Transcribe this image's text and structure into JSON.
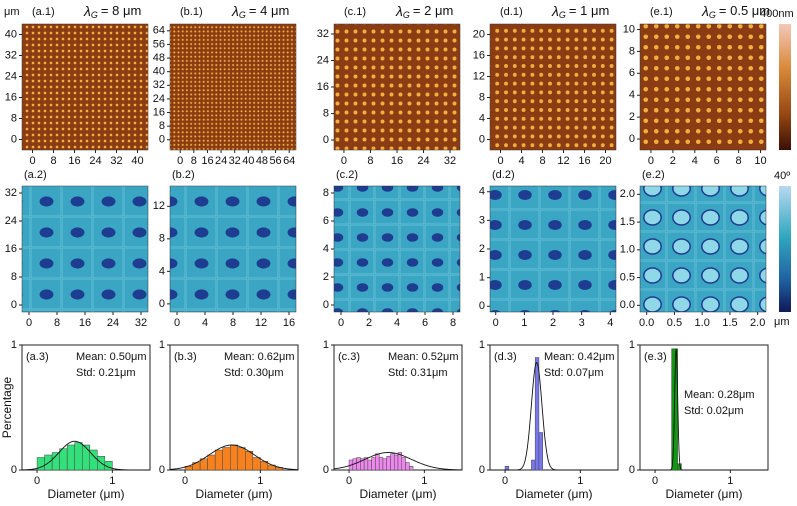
{
  "labels": {
    "unit_top": "μm",
    "bar1_top": "400nm",
    "bar2_top": "40º",
    "bar2_bottom": "μm"
  },
  "chart_data": [
    {
      "type": "image",
      "label": "(a.1)",
      "title": {
        "symbol": "λ",
        "subscript": "G",
        "text": "= 8  μm"
      },
      "xlim": [
        -4,
        44
      ],
      "ylim": [
        -4,
        44
      ],
      "xticks": [
        0,
        8,
        16,
        24,
        32,
        40
      ],
      "yticks": [
        0,
        8,
        16,
        24,
        32,
        40
      ]
    },
    {
      "type": "image",
      "label": "(b.1)",
      "title": {
        "symbol": "λ",
        "subscript": "G",
        "text": "= 4  μm"
      },
      "xlim": [
        -6,
        68
      ],
      "ylim": [
        -6,
        68
      ],
      "xticks": [
        0,
        8,
        16,
        24,
        32,
        40,
        48,
        56,
        64
      ],
      "yticks": [
        0,
        8,
        16,
        24,
        32,
        40,
        48,
        56,
        64
      ]
    },
    {
      "type": "image",
      "label": "(c.1)",
      "title": {
        "symbol": "λ",
        "subscript": "G",
        "text": "= 2  μm"
      },
      "xlim": [
        -3,
        35
      ],
      "ylim": [
        -3,
        35
      ],
      "xticks": [
        0,
        8,
        16,
        24,
        32
      ],
      "yticks": [
        0,
        8,
        16,
        24,
        32
      ]
    },
    {
      "type": "image",
      "label": "(d.1)",
      "title": {
        "symbol": "λ",
        "subscript": "G",
        "text": "= 1  μm"
      },
      "xlim": [
        -2,
        22
      ],
      "ylim": [
        -2,
        22
      ],
      "xticks": [
        0,
        4,
        8,
        12,
        16,
        20
      ],
      "yticks": [
        0,
        4,
        8,
        12,
        16,
        20
      ]
    },
    {
      "type": "image",
      "label": "(e.1)",
      "title": {
        "symbol": "λ",
        "subscript": "G",
        "text": "= 0.5  μm"
      },
      "xlim": [
        -1,
        10.5
      ],
      "ylim": [
        -1,
        10.5
      ],
      "xticks": [
        0,
        2,
        4,
        6,
        8,
        10
      ],
      "yticks": [
        0,
        2,
        4,
        6,
        8,
        10
      ]
    },
    {
      "type": "image",
      "label": "(a.2)",
      "xlim": [
        -2,
        34
      ],
      "ylim": [
        -2,
        34
      ],
      "xticks": [
        0,
        8,
        16,
        24,
        32
      ],
      "yticks": [
        0,
        8,
        16,
        24,
        32
      ]
    },
    {
      "type": "image",
      "label": "(b.2)",
      "xlim": [
        -1,
        17
      ],
      "ylim": [
        -1,
        14.5
      ],
      "xticks": [
        0,
        4,
        8,
        12,
        16
      ],
      "yticks": [
        0,
        4,
        8,
        12
      ]
    },
    {
      "type": "image",
      "label": "(c.2)",
      "xlim": [
        -0.5,
        8.5
      ],
      "ylim": [
        -0.5,
        8.5
      ],
      "xticks": [
        0,
        2,
        4,
        6,
        8
      ],
      "yticks": [
        0,
        2,
        4,
        6,
        8
      ]
    },
    {
      "type": "image",
      "label": "(d.2)",
      "xlim": [
        -0.2,
        4.2
      ],
      "ylim": [
        -0.2,
        4.2
      ],
      "xticks": [
        0,
        1,
        2,
        3,
        4
      ],
      "yticks": [
        0,
        1,
        2,
        3,
        4
      ]
    },
    {
      "type": "image",
      "label": "(e.2)",
      "xlim": [
        -0.12,
        2.15
      ],
      "ylim": [
        -0.12,
        2.15
      ],
      "xticks": [
        {
          "value": 0,
          "label": "0.0"
        },
        {
          "value": 0.5,
          "label": "0.5"
        },
        {
          "value": 1,
          "label": "1.0"
        },
        {
          "value": 1.5,
          "label": "1.5"
        },
        {
          "value": 2,
          "label": "2.0"
        }
      ],
      "yticks": [
        {
          "value": 0,
          "label": "0.0"
        },
        {
          "value": 0.5,
          "label": "0.5"
        },
        {
          "value": 1,
          "label": "1.0"
        },
        {
          "value": 1.5,
          "label": "1.5"
        },
        {
          "value": 2,
          "label": "2.0"
        }
      ]
    },
    {
      "type": "histogram",
      "label": "(a.3)",
      "ylabel": "Percentage",
      "xlabel": "Diameter (μm)",
      "annotation": [
        "Mean: 0.50μm",
        "Std: 0.21μm"
      ],
      "color": "#33e07a",
      "bins": [
        0,
        0.1,
        0.2,
        0.3,
        0.4,
        0.5,
        0.6,
        0.7,
        0.8,
        0.9,
        1.0
      ],
      "values": [
        0.1,
        0.12,
        0.14,
        0.17,
        0.2,
        0.22,
        0.2,
        0.16,
        0.11,
        0.07
      ],
      "fit": {
        "mean": 0.5,
        "std": 0.21,
        "peak": 0.23
      },
      "xlim": [
        -0.2,
        1.5
      ],
      "ylim": [
        0,
        1
      ],
      "xticks": [
        0,
        1
      ],
      "yticks": [
        0,
        1
      ]
    },
    {
      "type": "histogram",
      "label": "(b.3)",
      "xlabel": "Diameter (μm)",
      "annotation": [
        "Mean: 0.62μm",
        "Std: 0.30μm"
      ],
      "color": "#f5821f",
      "bins": [
        0,
        0.1,
        0.2,
        0.3,
        0.4,
        0.5,
        0.6,
        0.7,
        0.8,
        0.9,
        1.0,
        1.1,
        1.2,
        1.3
      ],
      "values": [
        0.03,
        0.06,
        0.09,
        0.12,
        0.16,
        0.18,
        0.2,
        0.18,
        0.15,
        0.1,
        0.07,
        0.04,
        0.02
      ],
      "fit": {
        "mean": 0.62,
        "std": 0.3,
        "peak": 0.2
      },
      "xlim": [
        -0.2,
        1.5
      ],
      "ylim": [
        0,
        1
      ],
      "xticks": [
        0,
        1
      ],
      "yticks": [
        0,
        1
      ]
    },
    {
      "type": "histogram",
      "label": "(c.3)",
      "xlabel": "Diameter (μm)",
      "annotation": [
        "Mean: 0.52μm",
        "Std: 0.31μm"
      ],
      "color": "#ee88ee",
      "bins": [
        0,
        0.05,
        0.1,
        0.15,
        0.2,
        0.25,
        0.3,
        0.35,
        0.4,
        0.45,
        0.5,
        0.55,
        0.6,
        0.65,
        0.7,
        0.75,
        0.8,
        0.85
      ],
      "values": [
        0.08,
        0.09,
        0.1,
        0.09,
        0.1,
        0.08,
        0.1,
        0.13,
        0.1,
        0.09,
        0.11,
        0.13,
        0.12,
        0.14,
        0.1,
        0.06,
        0.03
      ],
      "fit": {
        "mean": 0.52,
        "std": 0.31,
        "peak": 0.14
      },
      "xlim": [
        -0.2,
        1.5
      ],
      "ylim": [
        0,
        1
      ],
      "xticks": [
        0,
        1
      ],
      "yticks": [
        0,
        1
      ]
    },
    {
      "type": "histogram",
      "label": "(d.3)",
      "xlabel": "Diameter (μm)",
      "annotation": [
        "Mean: 0.42μm",
        "Std: 0.07μm"
      ],
      "color": "#7777ee",
      "bins": [
        0,
        0.05,
        0.1,
        0.15,
        0.2,
        0.25,
        0.3,
        0.35,
        0.4,
        0.45,
        0.5
      ],
      "values": [
        0.03,
        0,
        0,
        0,
        0,
        0,
        0,
        0.08,
        0.9,
        0.3
      ],
      "fit": {
        "mean": 0.42,
        "std": 0.07,
        "peak": 0.86
      },
      "xlim": [
        -0.2,
        1.5
      ],
      "ylim": [
        0,
        1
      ],
      "xticks": [
        0,
        1
      ],
      "yticks": [
        0,
        1
      ]
    },
    {
      "type": "histogram",
      "label": "(e.3)",
      "xlabel": "Diameter (μm)",
      "annotation": [
        "Mean: 0.28μm",
        "Std: 0.02μm"
      ],
      "color": "#119911",
      "bins": [
        0.22,
        0.3,
        0.35
      ],
      "values": [
        0.97,
        0.05
      ],
      "fit": {
        "mean": 0.28,
        "std": 0.02,
        "peak": 0.97
      },
      "xlim": [
        -0.2,
        1.5
      ],
      "ylim": [
        0,
        1
      ],
      "xticks": [
        0,
        1
      ],
      "yticks": [
        0,
        1
      ]
    }
  ]
}
